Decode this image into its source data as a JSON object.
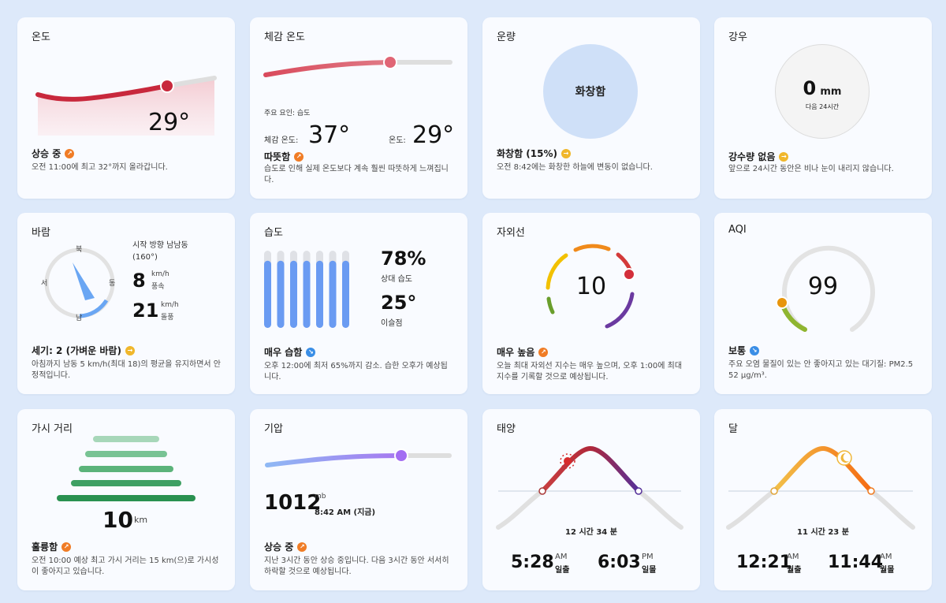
{
  "colors": {
    "background": "#dde9fa",
    "card": "#f9fbff",
    "trend_up": "#f07c25",
    "trend_down": "#3a8ee6",
    "trend_flat": "#f0b72b"
  },
  "temperature": {
    "title": "온도",
    "value": "29°",
    "status": "상승 중",
    "trend_icon": "trend-up-icon",
    "desc": "오전 11:00에 최고 32°까지 올라갑니다."
  },
  "feels_like": {
    "title": "체감 온도",
    "factor": "주요 요인: 습도",
    "feels_label": "체감 온도:",
    "feels_value": "37°",
    "temp_label": "온도:",
    "temp_value": "29°",
    "status": "따뜻함",
    "trend_icon": "trend-up-icon",
    "desc": "습도로 인해 실제 온도보다 계속 훨씬 따뜻하게 느껴집니다."
  },
  "cloud": {
    "title": "운량",
    "circle_label": "화창함",
    "status": "화창함 (15%)",
    "trend_icon": "trend-flat-icon",
    "desc": "오전 8:42에는 화창한 하늘에 변동이 없습니다."
  },
  "precip": {
    "title": "강우",
    "amount": "0",
    "unit": "mm",
    "sub": "다음 24시간",
    "status": "강수량 없음",
    "trend_icon": "trend-flat-icon",
    "desc": "앞으로 24시간 동안은 비나 눈이 내리지 않습니다."
  },
  "wind": {
    "title": "바람",
    "n": "북",
    "e": "동",
    "s": "남",
    "w": "서",
    "direction": "시작 방향 남남동 (160°)",
    "speed": "8",
    "speed_unit": "km/h",
    "speed_label": "풍속",
    "gust": "21",
    "gust_unit": "km/h",
    "gust_label": "돌풍",
    "status": "세기: 2 (가벼운 바람)",
    "trend_icon": "trend-flat-icon",
    "desc": "아침까지 남동 5 km/h(최대 18)의 평균을 유지하면서 안정적입니다."
  },
  "humidity": {
    "title": "습도",
    "value": "78%",
    "value_label": "상대 습도",
    "dew": "25°",
    "dew_label": "이슬점",
    "status": "매우 습함",
    "trend_icon": "trend-down-icon",
    "desc": "오후 12:00에 최저 65%까지 감소. 습한 오후가 예상됩니다.",
    "bars": [
      0.87,
      0.87,
      0.87,
      0.87,
      0.87,
      0.87,
      0.87
    ]
  },
  "uv": {
    "title": "자외선",
    "value": "10",
    "status": "매우 높음",
    "trend_icon": "trend-up-icon",
    "desc": "오늘 최대 자외선 지수는 매우 높으며, 오후 1:00에 최대 지수를 기록할 것으로 예상됩니다."
  },
  "aqi": {
    "title": "AQI",
    "value": "99",
    "status": "보통",
    "trend_icon": "trend-down-icon",
    "desc": "주요 오염 물질이 있는 안 좋아지고 있는 대기질: PM2.5 52 μg/m³."
  },
  "visibility": {
    "title": "가시 거리",
    "value": "10",
    "unit": "km",
    "status": "훌륭함",
    "trend_icon": "trend-up-icon",
    "desc": "오전 10:00 예상 최고 가시 거리는 15 km(으)로 가시성이 좋아지고 있습니다."
  },
  "pressure": {
    "title": "기압",
    "value": "1012",
    "unit": "mb",
    "time": "8:42 AM (지금)",
    "status": "상승 중",
    "trend_icon": "trend-up-icon",
    "desc": "지난 3시간 동안 상승 중입니다. 다음 3시간 동안 서서히 하락할 것으로 예상됩니다."
  },
  "sun": {
    "title": "태양",
    "duration": "12 시간 34 분",
    "rise_time": "5:28",
    "rise_ampm": "AM",
    "rise_label": "일출",
    "set_time": "6:03",
    "set_ampm": "PM",
    "set_label": "일몰"
  },
  "moon": {
    "title": "달",
    "duration": "11 시간 23 분",
    "rise_time": "12:21",
    "rise_ampm": "AM",
    "rise_label": "월출",
    "set_time": "11:44",
    "set_ampm": "AM",
    "set_label": "월몰"
  }
}
